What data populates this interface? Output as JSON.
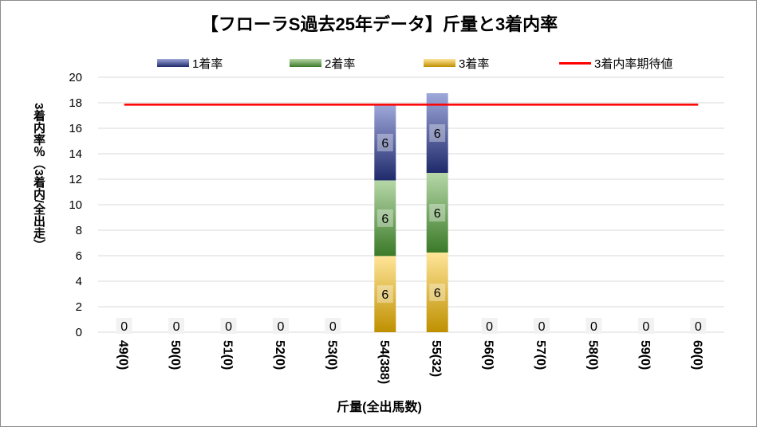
{
  "chart_data": {
    "type": "bar",
    "title": "【フローラS過去25年データ】斤量と3着内率",
    "xlabel": "斤量(全出馬数)",
    "ylabel": "3着内率％（3着内/全出走）",
    "ylim": [
      0,
      20
    ],
    "yticks": [
      "0",
      "2",
      "4",
      "6",
      "8",
      "10",
      "12",
      "14",
      "16",
      "18",
      "20"
    ],
    "categories": [
      "49(0)",
      "50(0)",
      "51(0)",
      "52(0)",
      "53(0)",
      "54(388)",
      "55(32)",
      "56(0)",
      "57(0)",
      "58(0)",
      "59(0)",
      "60(0)"
    ],
    "stacked": true,
    "series": [
      {
        "name": "3着率",
        "values": [
          0,
          0,
          0,
          0,
          0,
          5.98,
          6.25,
          0,
          0,
          0,
          0,
          0
        ],
        "color": "#e6b84a"
      },
      {
        "name": "2着率",
        "values": [
          0,
          0,
          0,
          0,
          0,
          5.93,
          6.25,
          0,
          0,
          0,
          0,
          0
        ],
        "color": "#6aa84f"
      },
      {
        "name": "1着率",
        "values": [
          0,
          0,
          0,
          0,
          0,
          5.93,
          6.25,
          0,
          0,
          0,
          0,
          0
        ],
        "color": "#3d4b9a"
      }
    ],
    "bar_labels": {
      "3着率": [
        "0",
        "0",
        "0",
        "0",
        "0",
        "6",
        "6",
        "0",
        "0",
        "0",
        "0",
        "0"
      ],
      "2着率": [
        "",
        "",
        "",
        "",
        "",
        "6",
        "6",
        "",
        "",
        "",
        "",
        ""
      ],
      "1着率": [
        "",
        "",
        "",
        "",
        "",
        "6",
        "6",
        "",
        "",
        "",
        "",
        ""
      ]
    },
    "reference_line": {
      "name": "3着内率期待値",
      "value": 17.85,
      "color": "#ff0000"
    },
    "legend_position": "top",
    "grid": true
  }
}
